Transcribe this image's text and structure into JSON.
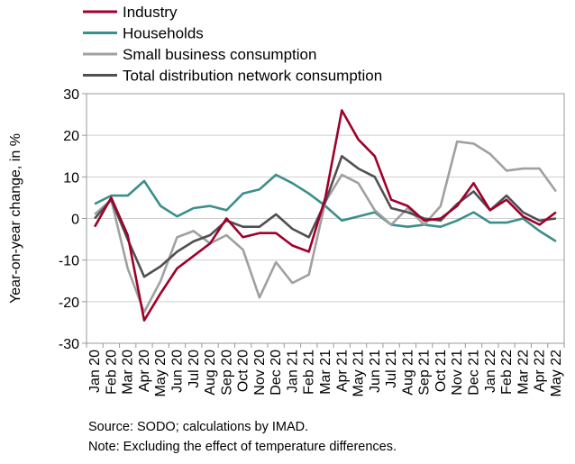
{
  "chart_data": {
    "type": "line",
    "ylabel": "Year-on-year change, in %",
    "ylim": [
      -30,
      30
    ],
    "yticks": [
      -30,
      -20,
      -10,
      0,
      10,
      20,
      30
    ],
    "grid": true,
    "legend_position": "top",
    "categories": [
      "Jan 20",
      "Feb 20",
      "Mar 20",
      "Apr 20",
      "May 20",
      "Jun 20",
      "Jul 20",
      "Aug 20",
      "Sep 20",
      "Oct 20",
      "Nov 20",
      "Dec 20",
      "Jan 21",
      "Feb 21",
      "Mar 21",
      "Apr 21",
      "May 21",
      "Jun 21",
      "Jul 21",
      "Aug 21",
      "Sep 21",
      "Oct 21",
      "Nov 21",
      "Dec 21",
      "Jan 22",
      "Feb 22",
      "Mar 22",
      "Apr 22",
      "May 22"
    ],
    "series": [
      {
        "name": "Industry",
        "color": "#a0002a",
        "values": [
          -2,
          5,
          -4,
          -24.5,
          -18,
          -12,
          -9,
          -6,
          0,
          -4.5,
          -3.5,
          -3.5,
          -6.5,
          -8,
          5,
          26,
          19,
          15,
          4.5,
          3,
          -0.5,
          0,
          3,
          8.5,
          2,
          4.5,
          0.5,
          -1.5,
          1.5
        ]
      },
      {
        "name": "Households",
        "color": "#3a8f8a",
        "values": [
          3.5,
          5.5,
          5.5,
          9,
          3,
          0.5,
          2.5,
          3,
          2,
          6,
          7,
          10.5,
          8.5,
          6,
          3,
          -0.5,
          0.5,
          1.5,
          -1.5,
          -2,
          -1.5,
          -2,
          -0.5,
          1.5,
          -1,
          -1,
          0,
          -3,
          -5.5
        ]
      },
      {
        "name": "Small business consumption",
        "color": "#a0a0a0",
        "values": [
          1,
          4.5,
          -12,
          -22.5,
          -15,
          -4.5,
          -3,
          -6,
          -4,
          -7.5,
          -19,
          -10.5,
          -15.5,
          -13.5,
          4,
          10.5,
          8.5,
          2,
          -1.5,
          2.5,
          -1.5,
          3,
          18.5,
          18,
          15.5,
          11.5,
          12,
          12,
          6.5
        ]
      },
      {
        "name": "Total distribution network consumption",
        "color": "#505054",
        "values": [
          0,
          4.5,
          -5,
          -14,
          -11.5,
          -8,
          -5.5,
          -4,
          -0.5,
          -2,
          -2,
          1,
          -2.5,
          -4.5,
          4,
          15,
          12,
          10,
          2.5,
          1.5,
          0,
          -0.5,
          3.5,
          6.5,
          2,
          5.5,
          1.5,
          -0.5,
          0
        ]
      }
    ]
  },
  "notes": {
    "source": "Source: SODO; calculations by IMAD.",
    "note": "Note: Excluding the effect of temperature differences."
  }
}
